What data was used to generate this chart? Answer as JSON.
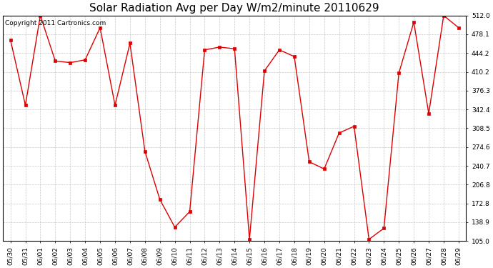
{
  "title": "Solar Radiation Avg per Day W/m2/minute 20110629",
  "copyright": "Copyright 2011 Cartronics.com",
  "labels": [
    "05/30",
    "05/31",
    "06/01",
    "06/02",
    "06/03",
    "06/04",
    "06/05",
    "06/06",
    "06/07",
    "06/08",
    "06/09",
    "06/10",
    "06/11",
    "06/12",
    "06/13",
    "06/14",
    "06/15",
    "06/16",
    "06/17",
    "06/18",
    "06/19",
    "06/20",
    "06/21",
    "06/22",
    "06/23",
    "06/24",
    "06/25",
    "06/26",
    "06/27",
    "06/28",
    "06/29"
  ],
  "values": [
    468,
    350,
    512,
    430,
    427,
    432,
    490,
    350,
    462,
    267,
    180,
    130,
    158,
    450,
    455,
    452,
    108,
    412,
    450,
    438,
    248,
    235,
    300,
    312,
    108,
    128,
    408,
    500,
    335,
    512,
    490
  ],
  "line_color": "#dd0000",
  "marker": "s",
  "marker_size": 2.5,
  "bg_color": "#ffffff",
  "grid_color": "#c8c8c8",
  "ylim_min": 105.0,
  "ylim_max": 512.0,
  "yticks": [
    105.0,
    138.9,
    172.8,
    206.8,
    240.7,
    274.6,
    308.5,
    342.4,
    376.3,
    410.2,
    444.2,
    478.1,
    512.0
  ],
  "title_fontsize": 11,
  "copyright_fontsize": 6.5,
  "tick_fontsize": 6.5,
  "fig_width": 6.9,
  "fig_height": 3.75,
  "fig_dpi": 100
}
